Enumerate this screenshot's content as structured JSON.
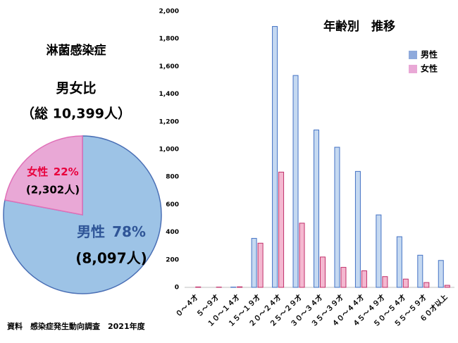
{
  "chart_data": [
    {
      "type": "pie",
      "title": "淋菌感染症",
      "subtitle": "男女比",
      "total_label": "（総 10,399人）",
      "categories": [
        "男性",
        "女性"
      ],
      "values": [
        78,
        22
      ],
      "value_labels": [
        "78%",
        "22%"
      ],
      "count_labels": [
        "(8,097人)",
        "(2,302人)"
      ],
      "colors": [
        "#9dc3e6",
        "#e9a8d6"
      ],
      "label_colors": [
        "#2f5597",
        "#e8003c"
      ]
    },
    {
      "type": "bar",
      "title": "年齢別　推移",
      "categories": [
        "０～４才",
        "５～９才",
        "１０～１４才",
        "１５～１９才",
        "２０～２４才",
        "２５～２９才",
        "３０～３４才",
        "３５～３９才",
        "４０～４４才",
        "４５～４９才",
        "５０～５４才",
        "５５～５９才",
        "６０才以上"
      ],
      "series": [
        {
          "name": "男性",
          "color": "#c5d9f1",
          "stroke": "#4472c4",
          "values": [
            0,
            0,
            2,
            355,
            1890,
            1535,
            1140,
            1015,
            840,
            525,
            367,
            233,
            195
          ]
        },
        {
          "name": "女性",
          "color": "#f4b8d0",
          "stroke": "#c0306a",
          "values": [
            3,
            2,
            4,
            320,
            835,
            465,
            220,
            145,
            120,
            78,
            60,
            35,
            15
          ]
        }
      ],
      "ylim": [
        0,
        2000
      ],
      "yticks": [
        0,
        200,
        400,
        600,
        800,
        {
          "value": 1000,
          "label": "1,000"
        },
        {
          "value": 1200,
          "label": "1,200"
        },
        {
          "value": 1400,
          "label": "1,400"
        },
        {
          "value": 1600,
          "label": "1,600"
        },
        {
          "value": 1800,
          "label": "1,800"
        },
        {
          "value": 2000,
          "label": "2,000"
        }
      ],
      "legend": "upper right"
    }
  ],
  "source": "資料　感染症発生動向調査　2021年度"
}
